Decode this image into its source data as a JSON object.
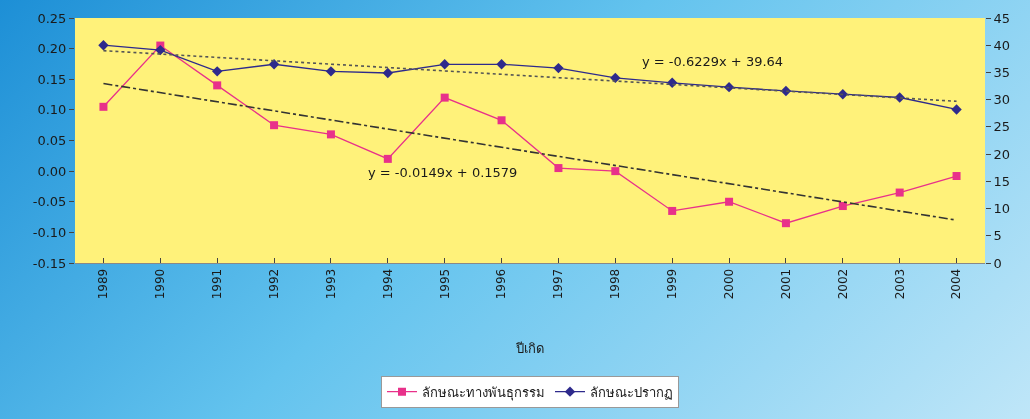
{
  "chart_data": {
    "type": "line",
    "xlabel": "ปีเกิด",
    "categories": [
      "1989",
      "1990",
      "1991",
      "1992",
      "1993",
      "1994",
      "1995",
      "1996",
      "1997",
      "1998",
      "1999",
      "2000",
      "2001",
      "2002",
      "2003",
      "2004"
    ],
    "series": [
      {
        "name": "ลักษณะทางพันธุกรรม",
        "color": "#e8318a",
        "marker": "square",
        "values": [
          0.105,
          0.205,
          0.14,
          0.075,
          0.06,
          0.02,
          0.12,
          0.083,
          0.005,
          0.0,
          -0.065,
          -0.05,
          -0.085,
          -0.057,
          -0.035,
          -0.008
        ]
      },
      {
        "name": "ลักษณะปรากฏ",
        "color": "#2e2a8c",
        "marker": "diamond",
        "axis": "y2",
        "values": [
          40.0,
          39.1,
          35.2,
          36.5,
          35.2,
          34.9,
          36.5,
          36.5,
          35.8,
          34.0,
          33.1,
          32.3,
          31.6,
          31.0,
          30.4,
          28.2
        ]
      },
      {
        "type": "line",
        "color": "#333333",
        "marker": "none",
        "line_style": "dashed",
        "values": [
          0.143,
          null,
          null,
          null,
          null,
          null,
          null,
          null,
          null,
          null,
          null,
          null,
          null,
          null,
          null,
          -0.08
        ]
      },
      {
        "type": "line",
        "color": "#555555",
        "marker": "none",
        "line_style": "dotted",
        "axis": "y2",
        "values": [
          39.0,
          null,
          null,
          null,
          null,
          null,
          null,
          null,
          null,
          null,
          null,
          null,
          null,
          null,
          null,
          29.7
        ]
      }
    ],
    "ylim": [
      -0.15,
      0.25
    ],
    "yticks": [
      {
        "value": -0.15,
        "label": "-0.15"
      },
      {
        "value": -0.1,
        "label": "-0.10"
      },
      {
        "value": -0.05,
        "label": "-0.05"
      },
      {
        "value": 0,
        "label": "0.00"
      },
      {
        "value": 0.05,
        "label": "0.05"
      },
      {
        "value": 0.1,
        "label": "0.10"
      },
      {
        "value": 0.15,
        "label": "0.15"
      },
      {
        "value": 0.2,
        "label": "0.20"
      },
      {
        "value": 0.25,
        "label": "0.25"
      }
    ],
    "y2lim": [
      0,
      45
    ],
    "y2ticks": [
      0,
      5,
      10,
      15,
      20,
      25,
      30,
      35,
      40,
      45
    ],
    "annotations": [
      "y = -0.0149x + 0.1579",
      "y = -0.6229x + 39.64"
    ],
    "grid": false,
    "legend": "bottom"
  }
}
